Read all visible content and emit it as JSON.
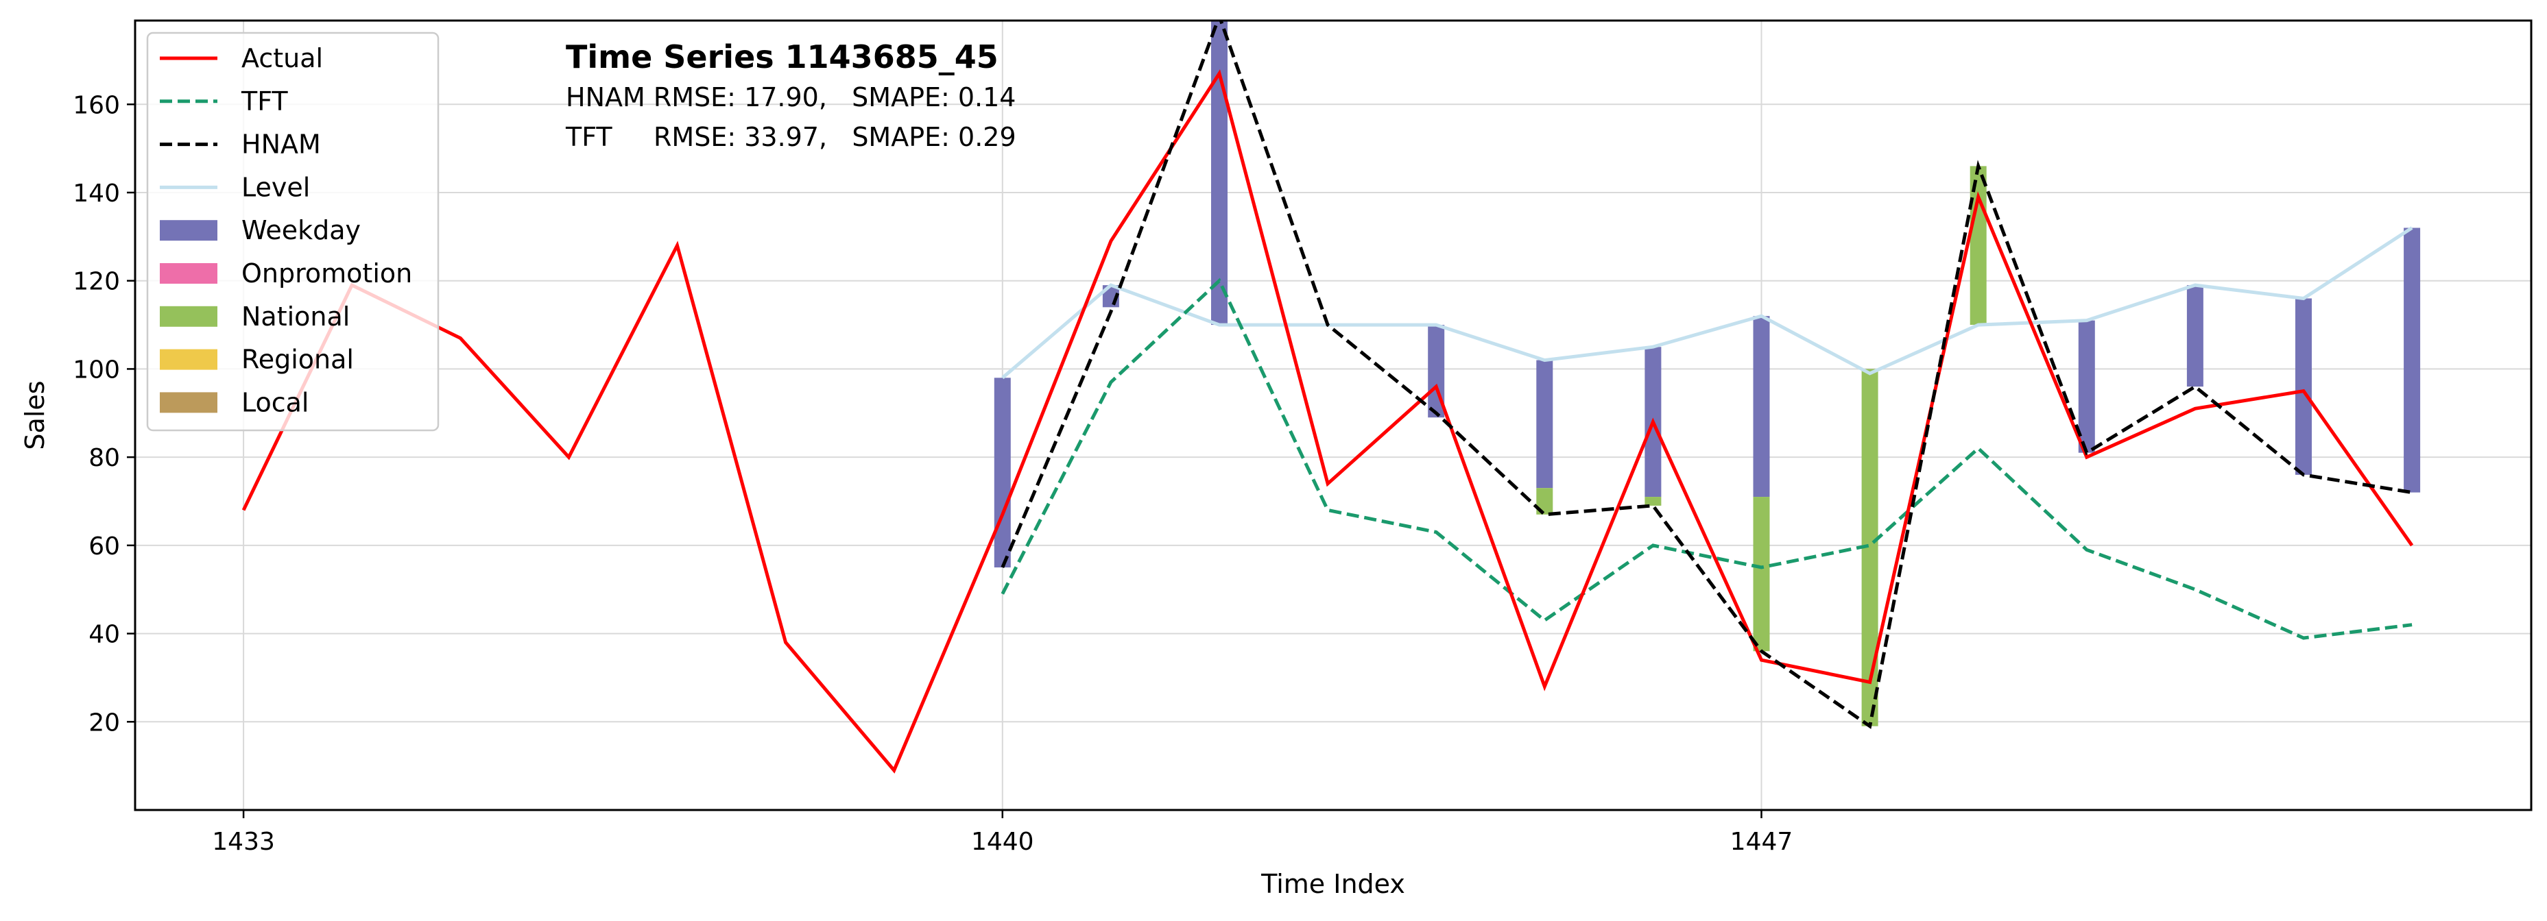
{
  "chart_data": {
    "type": "line",
    "title": "Time Series 1143685_45",
    "annotations": [
      {
        "model": "HNAM",
        "text": "HNAM RMSE: 17.90,   SMAPE: 0.14"
      },
      {
        "model": "TFT",
        "text": "TFT     RMSE: 33.97,   SMAPE: 0.29"
      }
    ],
    "xlabel": "Time Index",
    "ylabel": "Sales",
    "xlim": [
      1432,
      1454.1
    ],
    "ylim": [
      0,
      179
    ],
    "xticks": [
      1433,
      1440,
      1447
    ],
    "yticks": [
      20,
      40,
      60,
      80,
      100,
      120,
      140,
      160
    ],
    "grid": true,
    "legend_position": "top-left",
    "series": [
      {
        "name": "Actual",
        "style": "solid",
        "color": "#ff0000",
        "x": [
          1433,
          1434,
          1435,
          1436,
          1437,
          1438,
          1439,
          1440,
          1441,
          1442,
          1443,
          1444,
          1445,
          1446,
          1447,
          1448,
          1449,
          1450,
          1451,
          1452,
          1453
        ],
        "values": [
          68,
          119,
          107,
          80,
          128,
          38,
          9,
          67,
          129,
          167,
          74,
          96,
          28,
          88,
          34,
          29,
          139,
          80,
          91,
          95,
          60
        ]
      },
      {
        "name": "TFT",
        "style": "dashed",
        "color": "#1a9a6c",
        "x": [
          1440,
          1441,
          1442,
          1443,
          1444,
          1445,
          1446,
          1447,
          1448,
          1449,
          1450,
          1451,
          1452,
          1453
        ],
        "values": [
          49,
          97,
          120,
          68,
          63,
          43,
          60,
          55,
          60,
          82,
          59,
          50,
          39,
          42
        ]
      },
      {
        "name": "HNAM",
        "style": "dashed",
        "color": "#000000",
        "x": [
          1440,
          1441,
          1442,
          1443,
          1444,
          1445,
          1446,
          1447,
          1448,
          1449,
          1450,
          1451,
          1452,
          1453
        ],
        "values": [
          55,
          113,
          180,
          110,
          90,
          67,
          69,
          36,
          19,
          146,
          81,
          96,
          76,
          72
        ]
      },
      {
        "name": "Level",
        "style": "solid",
        "color": "#c3e0ee",
        "x": [
          1440,
          1441,
          1442,
          1443,
          1444,
          1445,
          1446,
          1447,
          1448,
          1449,
          1450,
          1451,
          1452,
          1453
        ],
        "values": [
          98,
          119,
          110,
          110,
          110,
          102,
          105,
          112,
          99,
          110,
          111,
          119,
          116,
          132
        ]
      }
    ],
    "components": [
      {
        "name": "Weekday",
        "color": "#7473b6"
      },
      {
        "name": "Onpromotion",
        "color": "#ee6ea9"
      },
      {
        "name": "National",
        "color": "#95c15b"
      },
      {
        "name": "Regional",
        "color": "#efc94a"
      },
      {
        "name": "Local",
        "color": "#bc9a5b"
      }
    ],
    "component_bars": [
      {
        "x": 1440,
        "segments": [
          {
            "component": "Weekday",
            "from": 98,
            "to": 55
          }
        ]
      },
      {
        "x": 1441,
        "segments": [
          {
            "component": "Weekday",
            "from": 119,
            "to": 114
          }
        ]
      },
      {
        "x": 1442,
        "segments": [
          {
            "component": "Weekday",
            "from": 180,
            "to": 110
          }
        ]
      },
      {
        "x": 1444,
        "segments": [
          {
            "component": "Weekday",
            "from": 110,
            "to": 89
          }
        ]
      },
      {
        "x": 1445,
        "segments": [
          {
            "component": "Weekday",
            "from": 102,
            "to": 73
          },
          {
            "component": "National",
            "from": 73,
            "to": 67
          }
        ]
      },
      {
        "x": 1446,
        "segments": [
          {
            "component": "Weekday",
            "from": 105,
            "to": 71
          },
          {
            "component": "National",
            "from": 71,
            "to": 69
          }
        ]
      },
      {
        "x": 1447,
        "segments": [
          {
            "component": "Weekday",
            "from": 112,
            "to": 71
          },
          {
            "component": "National",
            "from": 71,
            "to": 36
          }
        ]
      },
      {
        "x": 1448,
        "segments": [
          {
            "component": "National",
            "from": 100,
            "to": 19
          }
        ]
      },
      {
        "x": 1449,
        "segments": [
          {
            "component": "National",
            "from": 110,
            "to": 146
          }
        ]
      },
      {
        "x": 1450,
        "segments": [
          {
            "component": "Weekday",
            "from": 111,
            "to": 81
          }
        ]
      },
      {
        "x": 1451,
        "segments": [
          {
            "component": "Weekday",
            "from": 119,
            "to": 96
          }
        ]
      },
      {
        "x": 1452,
        "segments": [
          {
            "component": "Weekday",
            "from": 116,
            "to": 76
          }
        ]
      },
      {
        "x": 1453,
        "segments": [
          {
            "component": "Weekday",
            "from": 132,
            "to": 72
          }
        ]
      }
    ]
  }
}
